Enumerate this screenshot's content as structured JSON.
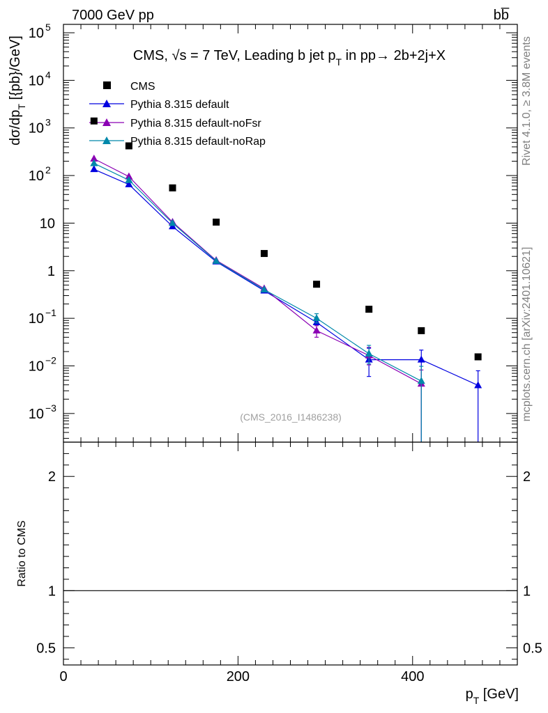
{
  "header": {
    "energy_label": "7000 GeV pp",
    "process_label": "bb̅"
  },
  "side_labels": {
    "rivet": "Rivet 4.1.0, ≥ 3.8M events",
    "site": "mcplots.cern.ch [arXiv:2401.10621]"
  },
  "analysis_tag": "(CMS_2016_I1486238)",
  "chart_data": {
    "type": "scatter",
    "title": "CMS, √s = 7 TeV, Leading b jet p_T in pp → 2b+2j+X",
    "title_parts": {
      "pre": "CMS, ",
      "sqrt": "√",
      "s": "s",
      "mid": " = 7 TeV, Leading b jet p",
      "sub": "T",
      "post": " in pp→  2b+2j+X"
    },
    "xlabel": "p_T [GeV]",
    "xlabel_parts": {
      "p": "p",
      "sub": "T",
      "unit": " [GeV]"
    },
    "ylabel": "dσ/dp_T [{pb}/GeV]",
    "ylabel_parts": {
      "pre": "dσ/dp",
      "sub": "T",
      "post": " [{pb}/GeV]"
    },
    "ratio_ylabel": "Ratio to CMS",
    "xlim": [
      0,
      520
    ],
    "ylim": [
      0.00025,
      150000
    ],
    "yscale": "log",
    "ratio_ylim": [
      0.35,
      2.3
    ],
    "x_ticks": [
      0,
      200,
      400
    ],
    "x_tick_labels": [
      "0",
      "200",
      "400"
    ],
    "y_ticks": [
      {
        "value": 100000,
        "base": "10",
        "exp": "5"
      },
      {
        "value": 10000,
        "base": "10",
        "exp": "4"
      },
      {
        "value": 1000,
        "base": "10",
        "exp": "3"
      },
      {
        "value": 100,
        "base": "10",
        "exp": "2"
      },
      {
        "value": 10,
        "base": "10",
        "exp": ""
      },
      {
        "value": 1,
        "base": "1",
        "exp": ""
      },
      {
        "value": 0.1,
        "base": "10",
        "exp": "−1"
      },
      {
        "value": 0.01,
        "base": "10",
        "exp": "−2"
      },
      {
        "value": 0.001,
        "base": "10",
        "exp": "−3"
      }
    ],
    "ratio_ticks": [
      {
        "value": 2,
        "label": "2"
      },
      {
        "value": 1,
        "label": "1"
      },
      {
        "value": 0.5,
        "label": "0.5"
      }
    ],
    "series": [
      {
        "name": "CMS",
        "kind": "data",
        "color": "#000000",
        "marker": "square",
        "x": [
          35,
          75,
          125,
          175,
          230,
          290,
          350,
          410,
          475
        ],
        "y": [
          1400,
          420,
          55,
          10.5,
          2.3,
          0.52,
          0.155,
          0.055,
          0.0155
        ]
      },
      {
        "name": "Pythia 8.315 default",
        "kind": "mc",
        "color": "#0000e0",
        "marker": "triangle",
        "x": [
          35,
          75,
          125,
          175,
          230,
          290,
          350,
          410,
          475
        ],
        "y": [
          135,
          65,
          8.5,
          1.55,
          0.38,
          0.082,
          0.0135,
          0.0135,
          0.0039
        ],
        "err_lo": [
          0,
          0,
          0,
          0,
          0,
          0,
          0.0075,
          0.0133,
          0.0038
        ],
        "err_hi": [
          0,
          0,
          0,
          0,
          0,
          0,
          0.01,
          0.008,
          0.004
        ]
      },
      {
        "name": "Pythia 8.315 default-noFsr",
        "kind": "mc",
        "color": "#8b00b4",
        "marker": "triangle",
        "x": [
          35,
          75,
          125,
          175,
          230,
          290,
          350,
          410
        ],
        "y": [
          225,
          95,
          10.5,
          1.65,
          0.42,
          0.055,
          0.0165,
          0.0042
        ],
        "err_lo": [
          0,
          0,
          0,
          0,
          0,
          0.015,
          0.006,
          0.0041
        ],
        "err_hi": [
          0,
          0,
          0,
          0,
          0,
          0.015,
          0.008,
          0.004
        ]
      },
      {
        "name": "Pythia 8.315 default-noRap",
        "kind": "mc",
        "color": "#0088aa",
        "marker": "triangle",
        "x": [
          35,
          75,
          125,
          175,
          230,
          290,
          350,
          410
        ],
        "y": [
          180,
          80,
          10,
          1.6,
          0.4,
          0.1,
          0.018,
          0.0048
        ],
        "err_lo": [
          0,
          0,
          0,
          0,
          0,
          0.02,
          0.007,
          0.0047
        ],
        "err_hi": [
          0,
          0,
          0,
          0,
          0,
          0.025,
          0.009,
          0.005
        ]
      }
    ]
  }
}
